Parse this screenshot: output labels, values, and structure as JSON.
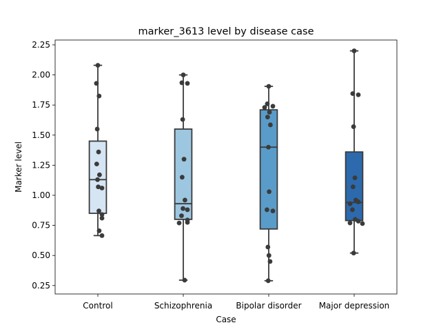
{
  "chart_data": {
    "type": "box",
    "title": "marker_3613 level by disease case",
    "xlabel": "Case",
    "ylabel": "Marker level",
    "ylim": [
      0.18,
      2.29
    ],
    "yticks": [
      0.25,
      0.5,
      0.75,
      1.0,
      1.25,
      1.5,
      1.75,
      2.0,
      2.25
    ],
    "ytick_labels": [
      "0.25",
      "0.50",
      "0.75",
      "1.00",
      "1.25",
      "1.50",
      "1.75",
      "2.00",
      "2.25"
    ],
    "grid": false,
    "legend": "none",
    "categories": [
      "Control",
      "Schizophrenia",
      "Bipolar disorder",
      "Major depression"
    ],
    "colors": [
      "#d6e5f4",
      "#9dc7e0",
      "#5a9cc9",
      "#2c6aad"
    ],
    "boxes": [
      {
        "name": "Control",
        "whisker_low": 0.665,
        "q1": 0.85,
        "median": 1.13,
        "q3": 1.45,
        "whisker_high": 2.08
      },
      {
        "name": "Schizophrenia",
        "whisker_low": 0.295,
        "q1": 0.8,
        "median": 0.93,
        "q3": 1.55,
        "whisker_high": 2.0
      },
      {
        "name": "Bipolar disorder",
        "whisker_low": 0.29,
        "q1": 0.72,
        "median": 1.4,
        "q3": 1.71,
        "whisker_high": 1.905
      },
      {
        "name": "Major depression",
        "whisker_low": 0.52,
        "q1": 0.79,
        "median": 0.94,
        "q3": 1.36,
        "whisker_high": 2.2
      }
    ],
    "points": [
      {
        "category": "Control",
        "values": [
          2.08,
          1.93,
          1.825,
          1.55,
          1.36,
          1.26,
          1.17,
          1.13,
          1.07,
          1.06,
          0.87,
          0.84,
          0.81,
          0.705,
          0.665
        ]
      },
      {
        "category": "Schizophrenia",
        "values": [
          2.0,
          1.935,
          1.93,
          1.63,
          1.3,
          1.15,
          0.96,
          0.89,
          0.88,
          0.83,
          0.795,
          0.775,
          0.77,
          0.295
        ]
      },
      {
        "category": "Bipolar disorder",
        "values": [
          1.905,
          1.76,
          1.74,
          1.73,
          1.69,
          1.65,
          1.585,
          1.4,
          1.03,
          0.88,
          0.87,
          0.57,
          0.5,
          0.45,
          0.29
        ]
      },
      {
        "category": "Major depression",
        "values": [
          2.2,
          1.845,
          1.835,
          1.57,
          1.145,
          1.07,
          0.96,
          0.945,
          0.93,
          0.88,
          0.8,
          0.785,
          0.77,
          0.765,
          0.52
        ]
      }
    ]
  }
}
